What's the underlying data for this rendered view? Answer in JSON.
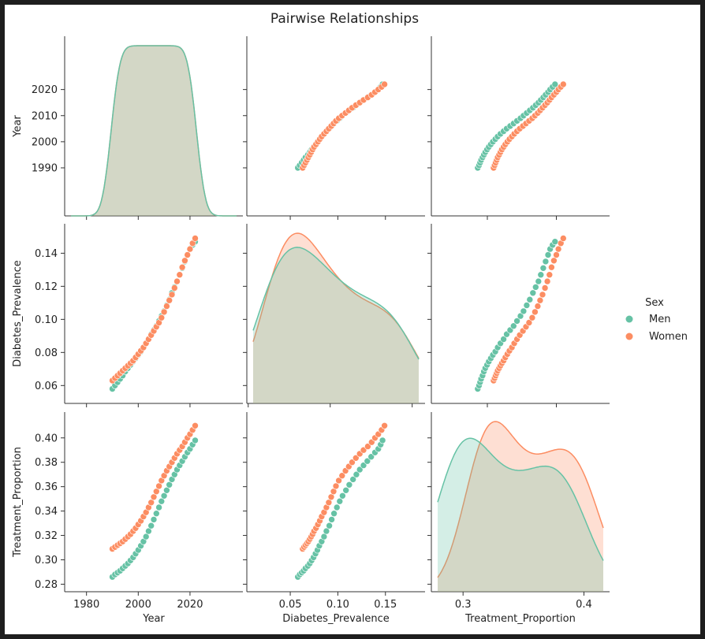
{
  "chart_data": {
    "type": "pairplot",
    "title": "Pairwise Relationships",
    "variables": [
      "Year",
      "Diabetes_Prevalence",
      "Treatment_Proportion"
    ],
    "hue": "Sex",
    "legend": {
      "title": "Sex",
      "placement": "right",
      "entries": [
        {
          "name": "Men",
          "color": "#66c2a5"
        },
        {
          "name": "Women",
          "color": "#fc8d62"
        }
      ]
    },
    "ranges": {
      "Year": [
        1974,
        2038
      ],
      "Diabetes_Prevalence": [
        0.053,
        0.154
      ],
      "Treatment_Proportion": [
        0.279,
        0.416
      ]
    },
    "scatter_ranges": {
      "Diabetes_Prevalence": [
        0.011,
        0.185
      ],
      "Treatment_Proportion": [
        0.228,
        0.468
      ]
    },
    "ticks": {
      "Year": [
        {
          "value": 1990,
          "label": "1990"
        },
        {
          "value": 2000,
          "label": "2000"
        },
        {
          "value": 2010,
          "label": "2010"
        },
        {
          "value": 2020,
          "label": "2020"
        }
      ],
      "Year_x": [
        {
          "value": 1980,
          "label": "1980"
        },
        {
          "value": 2000,
          "label": "2000"
        },
        {
          "value": 2020,
          "label": "2020"
        }
      ],
      "Diabetes_Prevalence": [
        {
          "value": 0.06,
          "label": "0.06"
        },
        {
          "value": 0.08,
          "label": "0.08"
        },
        {
          "value": 0.1,
          "label": "0.10"
        },
        {
          "value": 0.12,
          "label": "0.12"
        },
        {
          "value": 0.14,
          "label": "0.14"
        }
      ],
      "Diabetes_Prevalence_x": [
        {
          "value": 0.05,
          "label": "0.05"
        },
        {
          "value": 0.1,
          "label": "0.10"
        },
        {
          "value": 0.15,
          "label": "0.15"
        }
      ],
      "Treatment_Proportion": [
        {
          "value": 0.28,
          "label": "0.28"
        },
        {
          "value": 0.3,
          "label": "0.30"
        },
        {
          "value": 0.32,
          "label": "0.32"
        },
        {
          "value": 0.34,
          "label": "0.34"
        },
        {
          "value": 0.36,
          "label": "0.36"
        },
        {
          "value": 0.38,
          "label": "0.38"
        },
        {
          "value": 0.4,
          "label": "0.40"
        }
      ],
      "Treatment_Proportion_x": [
        {
          "value": 0.3,
          "label": "0.3"
        },
        {
          "value": 0.4,
          "label": "0.4"
        }
      ]
    },
    "series": [
      {
        "name": "Men",
        "color": "#66c2a5",
        "year": [
          1990,
          1991,
          1992,
          1993,
          1994,
          1995,
          1996,
          1997,
          1998,
          1999,
          2000,
          2001,
          2002,
          2003,
          2004,
          2005,
          2006,
          2007,
          2008,
          2009,
          2010,
          2011,
          2012,
          2013,
          2014,
          2015,
          2016,
          2017,
          2018,
          2019,
          2020,
          2021,
          2022
        ],
        "diabetes_prevalence": [
          0.058,
          0.06,
          0.062,
          0.064,
          0.066,
          0.0685,
          0.0705,
          0.0725,
          0.0745,
          0.0765,
          0.0785,
          0.0805,
          0.083,
          0.0855,
          0.088,
          0.091,
          0.0935,
          0.096,
          0.099,
          0.102,
          0.105,
          0.1085,
          0.112,
          0.116,
          0.1195,
          0.123,
          0.127,
          0.131,
          0.135,
          0.139,
          0.1425,
          0.145,
          0.147
        ],
        "treatment_proportion": [
          0.286,
          0.288,
          0.2895,
          0.291,
          0.293,
          0.295,
          0.297,
          0.2995,
          0.302,
          0.305,
          0.308,
          0.3115,
          0.315,
          0.319,
          0.3235,
          0.328,
          0.333,
          0.338,
          0.343,
          0.348,
          0.3525,
          0.357,
          0.3615,
          0.366,
          0.37,
          0.374,
          0.3775,
          0.381,
          0.3845,
          0.388,
          0.391,
          0.3945,
          0.398
        ]
      },
      {
        "name": "Women",
        "color": "#fc8d62",
        "year": [
          1990,
          1991,
          1992,
          1993,
          1994,
          1995,
          1996,
          1997,
          1998,
          1999,
          2000,
          2001,
          2002,
          2003,
          2004,
          2005,
          2006,
          2007,
          2008,
          2009,
          2010,
          2011,
          2012,
          2013,
          2014,
          2015,
          2016,
          2017,
          2018,
          2019,
          2020,
          2021,
          2022
        ],
        "diabetes_prevalence": [
          0.063,
          0.0645,
          0.066,
          0.0675,
          0.069,
          0.0705,
          0.072,
          0.0735,
          0.075,
          0.077,
          0.079,
          0.081,
          0.083,
          0.0855,
          0.088,
          0.0905,
          0.093,
          0.0955,
          0.098,
          0.101,
          0.1045,
          0.108,
          0.1115,
          0.115,
          0.119,
          0.123,
          0.127,
          0.1315,
          0.1355,
          0.139,
          0.1425,
          0.146,
          0.149
        ],
        "treatment_proportion": [
          0.309,
          0.3105,
          0.312,
          0.3135,
          0.315,
          0.317,
          0.319,
          0.321,
          0.3235,
          0.326,
          0.329,
          0.332,
          0.3355,
          0.339,
          0.343,
          0.347,
          0.3515,
          0.356,
          0.3605,
          0.365,
          0.369,
          0.373,
          0.3765,
          0.38,
          0.3835,
          0.387,
          0.39,
          0.393,
          0.3965,
          0.4,
          0.403,
          0.4065,
          0.41
        ]
      }
    ]
  }
}
